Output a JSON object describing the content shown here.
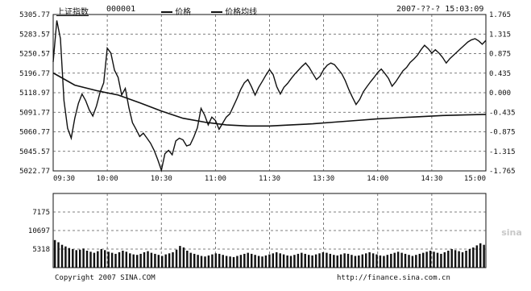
{
  "header": {
    "index_name": "上证指数",
    "code": "000001",
    "legend_price": "价格",
    "legend_avg": "价格均线",
    "datetime": "2007-??-? 15:03:09"
  },
  "footer": {
    "copyright": "Copyright 2007 SINA.COM",
    "url": "http://finance.sina.com.cn"
  },
  "watermark": "sina",
  "colors": {
    "price": "#111111",
    "average": "#111111",
    "grid": "#555555",
    "axis": "#111111",
    "background": "#ffffff"
  },
  "chart_data": [
    {
      "type": "line",
      "title": "",
      "x_ticks": [
        "09:30",
        "10:00",
        "10:30",
        "11:00",
        "11:30",
        "13:30",
        "14:00",
        "14:30",
        "15:00"
      ],
      "y_left_ticks": [
        "5305.77",
        "5283.57",
        "5250.57",
        "5196.77",
        "5118.97",
        "5091.77",
        "5060.77",
        "5045.57",
        "5022.77"
      ],
      "y_right_ticks": [
        "1.765",
        "1.315",
        "0.875",
        "0.435",
        "0.000",
        "-0.435",
        "-0.875",
        "-1.315",
        "-1.765"
      ],
      "ylim": [
        5022.77,
        5305.77
      ],
      "grid": true,
      "series": [
        {
          "name": "价格",
          "x": [
            0,
            1,
            2,
            3,
            4,
            5,
            6,
            7,
            8,
            9,
            10,
            11,
            12,
            13,
            14,
            15,
            16,
            17,
            18,
            19,
            20,
            21,
            22,
            23,
            24,
            25,
            26,
            27,
            28,
            29,
            30,
            31,
            32,
            33,
            34,
            35,
            36,
            37,
            38,
            39,
            40,
            41,
            42,
            43,
            44,
            45,
            46,
            47,
            48,
            49,
            50,
            51,
            52,
            53,
            54,
            55,
            56,
            57,
            58,
            59,
            60,
            61,
            62,
            63,
            64,
            65,
            66,
            67,
            68,
            69,
            70,
            71,
            72,
            73,
            74,
            75,
            76,
            77,
            78,
            79,
            80,
            81,
            82,
            83,
            84,
            85,
            86,
            87,
            88,
            89,
            90,
            91,
            92,
            93,
            94,
            95,
            96,
            97,
            98,
            99,
            100,
            101,
            102,
            103,
            104,
            105,
            106,
            107,
            108,
            109,
            110,
            111,
            112,
            113,
            114,
            115,
            116,
            117,
            118,
            119,
            120
          ],
          "y": [
            5220,
            5295,
            5262,
            5150,
            5100,
            5082,
            5118,
            5145,
            5162,
            5150,
            5133,
            5122,
            5140,
            5165,
            5182,
            5245,
            5236,
            5205,
            5192,
            5160,
            5172,
            5137,
            5110,
            5098,
            5085,
            5091,
            5082,
            5073,
            5060,
            5043,
            5024,
            5054,
            5060,
            5052,
            5077,
            5082,
            5079,
            5068,
            5070,
            5084,
            5101,
            5136,
            5124,
            5106,
            5120,
            5114,
            5098,
            5109,
            5120,
            5126,
            5140,
            5154,
            5170,
            5182,
            5188,
            5175,
            5160,
            5174,
            5185,
            5196,
            5206,
            5197,
            5175,
            5162,
            5174,
            5181,
            5190,
            5198,
            5205,
            5212,
            5218,
            5210,
            5199,
            5188,
            5194,
            5206,
            5214,
            5218,
            5215,
            5207,
            5199,
            5186,
            5170,
            5156,
            5143,
            5152,
            5166,
            5175,
            5184,
            5192,
            5201,
            5207,
            5199,
            5190,
            5176,
            5184,
            5194,
            5204,
            5210,
            5219,
            5225,
            5232,
            5242,
            5250,
            5244,
            5236,
            5242,
            5236,
            5228,
            5218,
            5226,
            5232,
            5238,
            5244,
            5250,
            5256,
            5260,
            5262,
            5258,
            5252,
            5259
          ]
        },
        {
          "name": "价格均线",
          "x": [
            0,
            6,
            12,
            18,
            24,
            30,
            36,
            42,
            48,
            54,
            60,
            66,
            72,
            78,
            84,
            90,
            96,
            102,
            108,
            114,
            120
          ],
          "y": [
            5200,
            5178,
            5168,
            5160,
            5146,
            5131,
            5118,
            5111,
            5106,
            5104,
            5104,
            5106,
            5108,
            5111,
            5114,
            5117,
            5119,
            5121,
            5123,
            5124,
            5125
          ]
        }
      ]
    },
    {
      "type": "bar",
      "title": "",
      "y_ticks": [
        "7175",
        "10697",
        "5318"
      ],
      "ylim": [
        0,
        14000
      ],
      "grid": true,
      "values": [
        5200,
        4800,
        4300,
        4000,
        3700,
        3500,
        3300,
        3400,
        3600,
        3200,
        3000,
        2800,
        3100,
        3500,
        3300,
        3000,
        2800,
        2600,
        2900,
        3200,
        3000,
        2700,
        2500,
        2400,
        2600,
        2900,
        3100,
        2800,
        2600,
        2400,
        2200,
        2500,
        2700,
        2900,
        3400,
        4100,
        3800,
        3200,
        2800,
        2600,
        2400,
        2200,
        2100,
        2300,
        2500,
        2700,
        2600,
        2400,
        2200,
        2100,
        2000,
        2200,
        2400,
        2600,
        2800,
        2600,
        2400,
        2200,
        2100,
        2300,
        2500,
        2700,
        2900,
        2700,
        2500,
        2300,
        2200,
        2400,
        2600,
        2800,
        2600,
        2400,
        2300,
        2500,
        2700,
        2900,
        2800,
        2600,
        2400,
        2300,
        2500,
        2700,
        2600,
        2400,
        2200,
        2300,
        2500,
        2700,
        2900,
        2700,
        2500,
        2300,
        2200,
        2400,
        2600,
        2800,
        3000,
        2800,
        2600,
        2400,
        2200,
        2400,
        2600,
        2800,
        3000,
        3200,
        3000,
        2800,
        2600,
        2900,
        3200,
        3500,
        3300,
        3100,
        2900,
        3200,
        3500,
        3800,
        4200,
        4600,
        4300
      ]
    }
  ]
}
